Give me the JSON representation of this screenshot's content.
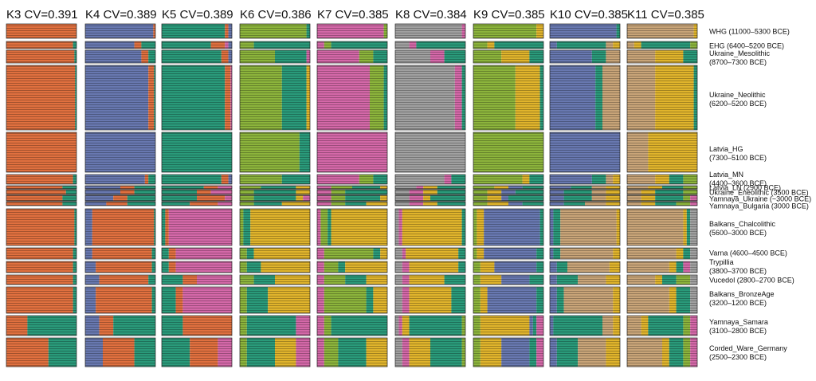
{
  "chart_data": {
    "type": "admixture",
    "groups": [
      {
        "lines": [
          "WHG (11000–5300 BCE)"
        ]
      },
      {
        "lines": [
          "EHG (6400–5200 BCE)"
        ]
      },
      {
        "lines": [
          "Ukraine_Mesolithic",
          "(8700–7300 BCE)"
        ]
      },
      {
        "lines": [
          "Ukraine_Neolithic",
          "(6200–5200 BCE)"
        ]
      },
      {
        "lines": [
          "Latvia_HG",
          "(7300–5100 BCE)"
        ]
      },
      {
        "lines": [
          "Latvia_MN",
          "(4400–3600 BCE)"
        ]
      },
      {
        "lines": [
          "Latvia_LN (2900 BCE)"
        ]
      },
      {
        "lines": [
          "Ukraine_Eneolithic (3500 BCE)"
        ]
      },
      {
        "lines": [
          "Yamnaya_Ukraine (~3000 BCE)"
        ]
      },
      {
        "lines": [
          "Yamnaya_Bulgaria (3000 BCE)"
        ]
      },
      {
        "lines": [
          "Balkans_Chalcolithic",
          "(5600–3000 BCE)"
        ]
      },
      {
        "lines": [
          "Varna (4600–4500 BCE)"
        ]
      },
      {
        "lines": [
          "Trypillia",
          "(3800–3700 BCE)"
        ]
      },
      {
        "lines": [
          "Vucedol (2800–2700 BCE)"
        ]
      },
      {
        "lines": [
          "Balkans_BronzeAge",
          "(3200–1200 BCE)"
        ]
      },
      {
        "lines": [
          "Yamnaya_Samara",
          "(3100–2800 BCE)"
        ]
      },
      {
        "lines": [
          "Corded_Ware_Germany",
          "(2500–2300 BCE)"
        ]
      }
    ],
    "panels": [
      {
        "title": "K3 CV=0.391",
        "colors": [
          "#e0703f",
          "#2a9a7a"
        ],
        "values": [
          [
            100,
            0
          ],
          [
            95,
            5
          ],
          [
            97,
            3
          ],
          [
            98,
            2
          ],
          [
            100,
            0
          ],
          [
            95,
            5
          ],
          [
            80,
            20
          ],
          [
            85,
            15
          ],
          [
            80,
            20
          ],
          [
            80,
            20
          ],
          [
            97,
            3
          ],
          [
            95,
            5
          ],
          [
            95,
            5
          ],
          [
            95,
            5
          ],
          [
            95,
            5
          ],
          [
            30,
            70
          ],
          [
            60,
            40
          ]
        ]
      },
      {
        "title": "K4 CV=0.389",
        "colors": [
          "#6878b0",
          "#e0703f",
          "#2a9a7a"
        ],
        "values": [
          [
            97,
            3,
            0
          ],
          [
            70,
            10,
            20
          ],
          [
            80,
            10,
            10
          ],
          [
            90,
            8,
            2
          ],
          [
            100,
            0,
            0
          ],
          [
            85,
            5,
            10
          ],
          [
            50,
            20,
            30
          ],
          [
            50,
            20,
            30
          ],
          [
            40,
            20,
            40
          ],
          [
            30,
            30,
            40
          ],
          [
            10,
            88,
            2
          ],
          [
            10,
            85,
            5
          ],
          [
            15,
            80,
            5
          ],
          [
            20,
            70,
            10
          ],
          [
            15,
            80,
            5
          ],
          [
            20,
            20,
            60
          ],
          [
            25,
            45,
            30
          ]
        ]
      },
      {
        "title": "K5 CV=0.389",
        "colors": [
          "#2a9a7a",
          "#e0703f",
          "#d468a8",
          "#6878b0"
        ],
        "values": [
          [
            90,
            5,
            0,
            5
          ],
          [
            70,
            20,
            5,
            5
          ],
          [
            85,
            10,
            0,
            5
          ],
          [
            90,
            8,
            2,
            0
          ],
          [
            100,
            0,
            0,
            0
          ],
          [
            85,
            10,
            0,
            5
          ],
          [
            60,
            20,
            20,
            0
          ],
          [
            50,
            20,
            30,
            0
          ],
          [
            50,
            40,
            10,
            0
          ],
          [
            40,
            40,
            20,
            0
          ],
          [
            5,
            5,
            90,
            0
          ],
          [
            10,
            10,
            80,
            0
          ],
          [
            10,
            10,
            80,
            0
          ],
          [
            30,
            20,
            50,
            0
          ],
          [
            20,
            10,
            70,
            0
          ],
          [
            30,
            70,
            0,
            0
          ],
          [
            40,
            40,
            20,
            0
          ]
        ]
      },
      {
        "title": "K6 CV=0.386",
        "colors": [
          "#8cb43c",
          "#2a9a7a",
          "#e0b42c",
          "#d468a8"
        ],
        "values": [
          [
            95,
            5,
            0,
            0
          ],
          [
            20,
            80,
            0,
            0
          ],
          [
            50,
            45,
            0,
            5
          ],
          [
            60,
            35,
            5,
            0
          ],
          [
            85,
            15,
            0,
            0
          ],
          [
            60,
            40,
            0,
            0
          ],
          [
            30,
            50,
            20,
            0
          ],
          [
            20,
            60,
            20,
            0
          ],
          [
            20,
            60,
            10,
            10
          ],
          [
            20,
            40,
            40,
            0
          ],
          [
            5,
            10,
            85,
            0
          ],
          [
            10,
            10,
            80,
            0
          ],
          [
            10,
            20,
            70,
            0
          ],
          [
            20,
            30,
            50,
            0
          ],
          [
            10,
            30,
            60,
            0
          ],
          [
            10,
            70,
            0,
            20
          ],
          [
            10,
            40,
            30,
            20
          ]
        ]
      },
      {
        "title": "K7 CV=0.385",
        "colors": [
          "#d468a8",
          "#8cb43c",
          "#2a9a7a",
          "#e0b42c"
        ],
        "values": [
          [
            95,
            5,
            0,
            0
          ],
          [
            10,
            10,
            80,
            0
          ],
          [
            60,
            20,
            20,
            0
          ],
          [
            75,
            20,
            5,
            0
          ],
          [
            100,
            0,
            0,
            0
          ],
          [
            60,
            20,
            20,
            0
          ],
          [
            20,
            30,
            40,
            10
          ],
          [
            20,
            20,
            60,
            0
          ],
          [
            20,
            20,
            50,
            10
          ],
          [
            20,
            20,
            30,
            30
          ],
          [
            5,
            10,
            5,
            80
          ],
          [
            10,
            70,
            10,
            10
          ],
          [
            10,
            20,
            10,
            60
          ],
          [
            10,
            30,
            30,
            30
          ],
          [
            10,
            60,
            10,
            20
          ],
          [
            10,
            10,
            80,
            0
          ],
          [
            10,
            20,
            40,
            30
          ]
        ]
      },
      {
        "title": "K8 CV=0.384",
        "colors": [
          "#a0a0a0",
          "#d468a8",
          "#e0b42c",
          "#2a9a7a",
          "#8cb43c"
        ],
        "values": [
          [
            95,
            5,
            0,
            0,
            0
          ],
          [
            20,
            10,
            0,
            70,
            0
          ],
          [
            50,
            20,
            0,
            30,
            0
          ],
          [
            85,
            10,
            0,
            5,
            0
          ],
          [
            100,
            0,
            0,
            0,
            0
          ],
          [
            70,
            10,
            0,
            20,
            0
          ],
          [
            30,
            10,
            20,
            40,
            0
          ],
          [
            20,
            20,
            20,
            40,
            0
          ],
          [
            20,
            20,
            10,
            50,
            0
          ],
          [
            20,
            20,
            20,
            40,
            0
          ],
          [
            5,
            5,
            85,
            5,
            0
          ],
          [
            10,
            5,
            75,
            10,
            0
          ],
          [
            10,
            10,
            70,
            10,
            0
          ],
          [
            10,
            10,
            50,
            30,
            0
          ],
          [
            10,
            10,
            60,
            20,
            0
          ],
          [
            5,
            5,
            10,
            75,
            5
          ],
          [
            10,
            10,
            30,
            45,
            5
          ]
        ]
      },
      {
        "title": "K9 CV=0.385",
        "colors": [
          "#8cb43c",
          "#e0b42c",
          "#6878b0",
          "#2a9a7a",
          "#d468a8"
        ],
        "values": [
          [
            90,
            10,
            0,
            0,
            0
          ],
          [
            20,
            10,
            0,
            70,
            0
          ],
          [
            40,
            40,
            0,
            20,
            0
          ],
          [
            60,
            35,
            0,
            5,
            0
          ],
          [
            100,
            0,
            0,
            0,
            0
          ],
          [
            70,
            10,
            0,
            20,
            0
          ],
          [
            30,
            20,
            20,
            30,
            0
          ],
          [
            20,
            20,
            20,
            40,
            0
          ],
          [
            20,
            20,
            10,
            50,
            0
          ],
          [
            20,
            30,
            20,
            30,
            0
          ],
          [
            5,
            10,
            80,
            5,
            0
          ],
          [
            5,
            10,
            75,
            10,
            0
          ],
          [
            10,
            20,
            60,
            10,
            0
          ],
          [
            10,
            30,
            40,
            20,
            0
          ],
          [
            10,
            10,
            70,
            10,
            0
          ],
          [
            10,
            70,
            5,
            5,
            10
          ],
          [
            10,
            30,
            40,
            10,
            10
          ]
        ]
      },
      {
        "title": "K10 CV=0.385",
        "colors": [
          "#6878b0",
          "#2a9a7a",
          "#c8a478",
          "#e0b42c",
          "#d468a8"
        ],
        "values": [
          [
            95,
            5,
            0,
            0,
            0
          ],
          [
            10,
            70,
            10,
            10,
            0
          ],
          [
            60,
            20,
            20,
            0,
            0
          ],
          [
            65,
            10,
            25,
            0,
            0
          ],
          [
            100,
            0,
            0,
            0,
            0
          ],
          [
            60,
            20,
            10,
            10,
            0
          ],
          [
            30,
            30,
            20,
            20,
            0
          ],
          [
            20,
            40,
            20,
            20,
            0
          ],
          [
            20,
            40,
            20,
            20,
            0
          ],
          [
            20,
            30,
            30,
            20,
            0
          ],
          [
            5,
            10,
            80,
            5,
            0
          ],
          [
            5,
            10,
            75,
            10,
            0
          ],
          [
            10,
            15,
            60,
            15,
            0
          ],
          [
            10,
            30,
            40,
            20,
            0
          ],
          [
            10,
            10,
            70,
            10,
            0
          ],
          [
            5,
            70,
            15,
            10,
            0
          ],
          [
            10,
            30,
            40,
            20,
            0
          ]
        ]
      },
      {
        "title": "K11 CV=0.385",
        "colors": [
          "#c8a478",
          "#e0b42c",
          "#2a9a7a",
          "#8cb43c",
          "#d468a8",
          "#a0a0a0"
        ],
        "values": [
          [
            95,
            5,
            0,
            0,
            0,
            0
          ],
          [
            10,
            10,
            70,
            10,
            0,
            0
          ],
          [
            40,
            40,
            20,
            0,
            0,
            0
          ],
          [
            40,
            55,
            5,
            0,
            0,
            0
          ],
          [
            30,
            70,
            0,
            0,
            0,
            0
          ],
          [
            40,
            20,
            20,
            20,
            0,
            0
          ],
          [
            30,
            20,
            30,
            20,
            0,
            0
          ],
          [
            20,
            20,
            40,
            20,
            0,
            0
          ],
          [
            20,
            20,
            40,
            10,
            10,
            0
          ],
          [
            20,
            20,
            30,
            20,
            10,
            0
          ],
          [
            80,
            5,
            5,
            0,
            0,
            10
          ],
          [
            70,
            10,
            10,
            0,
            0,
            10
          ],
          [
            60,
            10,
            10,
            0,
            10,
            10
          ],
          [
            40,
            10,
            20,
            20,
            0,
            10
          ],
          [
            60,
            10,
            20,
            0,
            0,
            10
          ],
          [
            20,
            10,
            50,
            10,
            10,
            0
          ],
          [
            50,
            10,
            20,
            10,
            10,
            0
          ]
        ]
      }
    ]
  }
}
